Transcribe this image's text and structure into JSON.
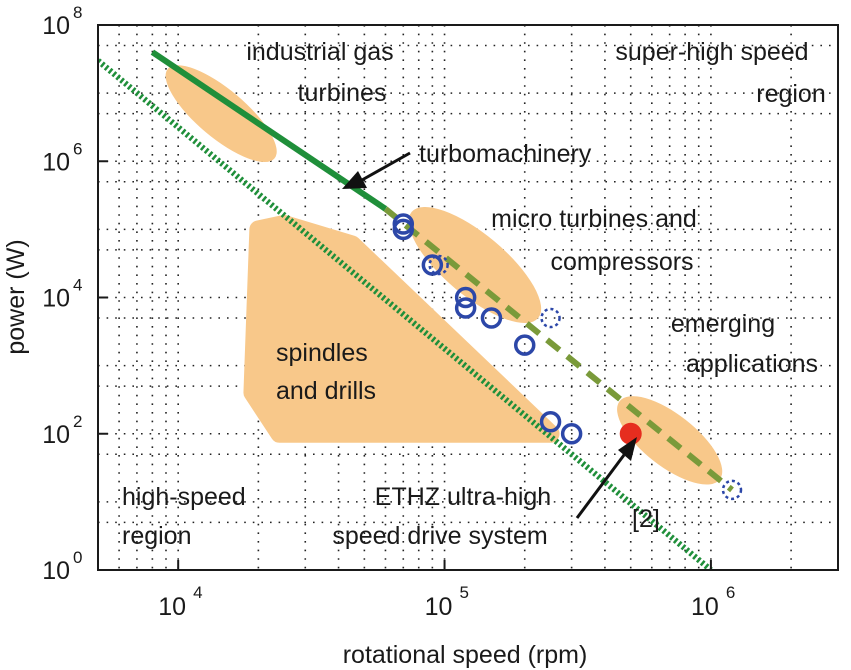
{
  "chart_data": {
    "type": "scatter",
    "xscale": "log",
    "yscale": "log",
    "xlim": [
      5000,
      3000000
    ],
    "ylim": [
      1,
      100000000
    ],
    "xlabel": "rotational speed (rpm)",
    "ylabel": "power (W)",
    "xticks": [
      {
        "base": "10",
        "exp": "4",
        "value": 10000
      },
      {
        "base": "10",
        "exp": "5",
        "value": 100000
      },
      {
        "base": "10",
        "exp": "6",
        "value": 1000000
      }
    ],
    "yticks": [
      {
        "base": "10",
        "exp": "0",
        "value": 1
      },
      {
        "base": "10",
        "exp": "2",
        "value": 100
      },
      {
        "base": "10",
        "exp": "4",
        "value": 10000
      },
      {
        "base": "10",
        "exp": "6",
        "value": 1000000
      },
      {
        "base": "10",
        "exp": "8",
        "value": 100000000
      }
    ],
    "grid": true,
    "colors": {
      "region": "#f8c88a",
      "trend": "#1f8f3a",
      "dashed_trend": "#7a9a3a",
      "points": "#2c47a8",
      "highlight": "#e62d1f"
    },
    "trend_lines": [
      {
        "style": "solid",
        "points": [
          [
            8000,
            40000000
          ],
          [
            60000,
            200000
          ]
        ]
      },
      {
        "style": "dashed",
        "points": [
          [
            60000,
            200000
          ],
          [
            1200000,
            15
          ]
        ]
      },
      {
        "style": "dotted",
        "points": [
          [
            5000,
            30000000
          ],
          [
            1000000,
            1
          ]
        ]
      }
    ],
    "regions": [
      {
        "name": "industrial gas turbines",
        "shape": "ellipse",
        "center": [
          14500,
          5000000
        ],
        "span": [
          [
            9000,
            30000
          ],
          [
            800000,
            30000000
          ]
        ]
      },
      {
        "name": "micro turbines and compressors",
        "shape": "ellipse",
        "center": [
          130000,
          30000
        ],
        "span": [
          [
            60000,
            250000
          ],
          [
            3000,
            300000
          ]
        ]
      },
      {
        "name": "spindles and drills",
        "shape": "polygon",
        "points": [
          [
            25000,
            120000
          ],
          [
            45000,
            60000
          ],
          [
            250000,
            100
          ],
          [
            24000,
            100
          ],
          [
            19000,
            400
          ],
          [
            20000,
            100000
          ]
        ]
      },
      {
        "name": "emerging applications",
        "shape": "ellipse",
        "center": [
          700000,
          80
        ],
        "span": [
          [
            400000,
            1200000
          ],
          [
            10,
            500
          ]
        ]
      }
    ],
    "series": [
      {
        "marker": "open-circle",
        "style": "solid",
        "points": [
          [
            70000,
            120000
          ],
          [
            70000,
            100000
          ],
          [
            90000,
            30000
          ],
          [
            120000,
            10000
          ],
          [
            120000,
            7000
          ],
          [
            150000,
            5000
          ],
          [
            200000,
            2000
          ],
          [
            250000,
            150
          ],
          [
            300000,
            100
          ]
        ]
      },
      {
        "marker": "open-circle",
        "style": "dotted",
        "points": [
          [
            70000,
            120000
          ],
          [
            95000,
            30000
          ],
          [
            250000,
            5000
          ],
          [
            1200000,
            15
          ]
        ]
      },
      {
        "marker": "filled-circle",
        "style": "solid",
        "points": [
          [
            500000,
            100
          ]
        ]
      }
    ],
    "annotations": {
      "gas_turbines": [
        "industrial gas",
        "turbines"
      ],
      "super_high": [
        "super-high speed",
        "region"
      ],
      "turbomachinery": "turbomachinery",
      "micro_turbines": [
        "micro turbines and",
        "compressors"
      ],
      "emerging": [
        "emerging",
        "applications"
      ],
      "spindles": [
        "spindles",
        "and drills"
      ],
      "high_speed": [
        "high-speed",
        "region"
      ],
      "ethz": [
        "ETHZ ultra-high",
        "speed drive system"
      ],
      "ref": "[2]"
    }
  }
}
